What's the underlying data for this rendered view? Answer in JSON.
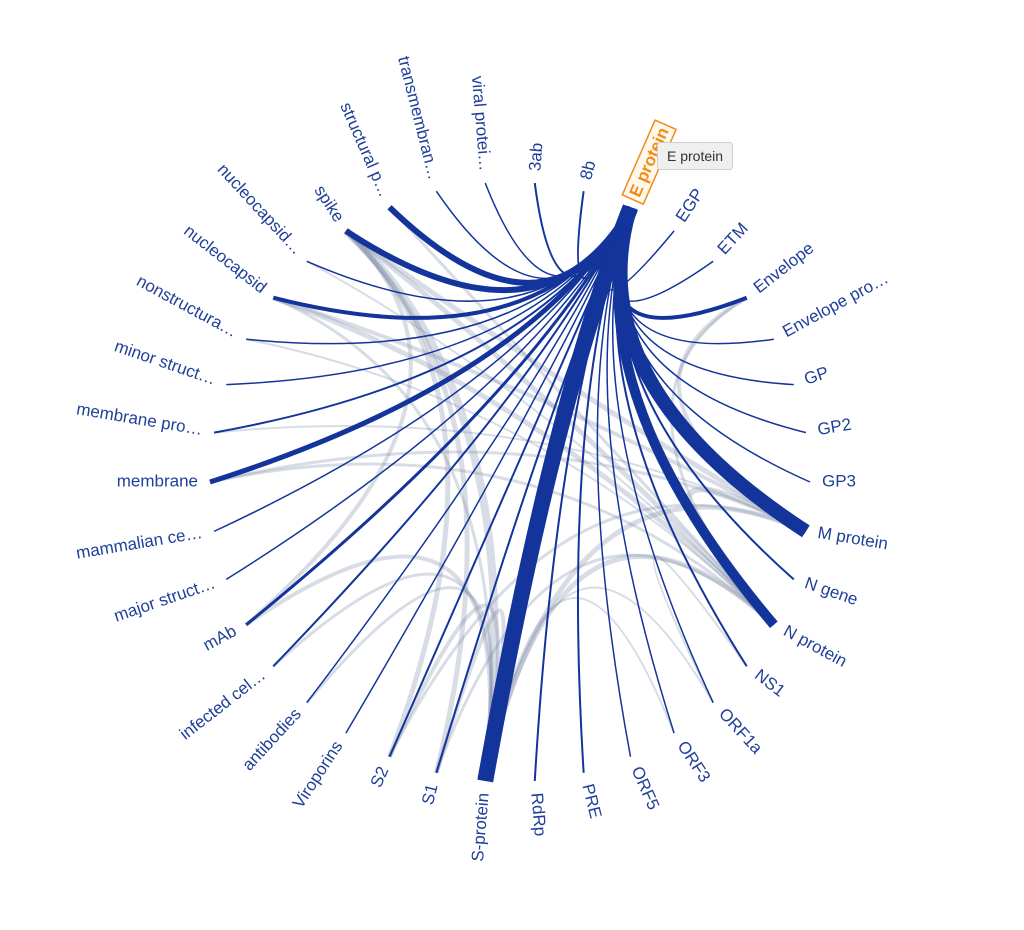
{
  "nodes": [
    {
      "label": "3ab"
    },
    {
      "label": "8b"
    },
    {
      "label": "E protein"
    },
    {
      "label": "EGP"
    },
    {
      "label": "ETM"
    },
    {
      "label": "Envelope"
    },
    {
      "label": "Envelope pro…"
    },
    {
      "label": "GP"
    },
    {
      "label": "GP2"
    },
    {
      "label": "GP3"
    },
    {
      "label": "M protein"
    },
    {
      "label": "N gene"
    },
    {
      "label": "N protein"
    },
    {
      "label": "NS1"
    },
    {
      "label": "ORF1a"
    },
    {
      "label": "ORF3"
    },
    {
      "label": "ORF5"
    },
    {
      "label": "PRE"
    },
    {
      "label": "RdRp"
    },
    {
      "label": "S-protein"
    },
    {
      "label": "S1"
    },
    {
      "label": "S2"
    },
    {
      "label": "Viroporins"
    },
    {
      "label": "antibodies"
    },
    {
      "label": "infected cel…"
    },
    {
      "label": "mAb"
    },
    {
      "label": "major struct…"
    },
    {
      "label": "mammalian ce…"
    },
    {
      "label": "membrane"
    },
    {
      "label": "membrane pro…"
    },
    {
      "label": "minor struct…"
    },
    {
      "label": "nonstructura…"
    },
    {
      "label": "nucleocapsid"
    },
    {
      "label": "nucleocapsid…"
    },
    {
      "label": "spike"
    },
    {
      "label": "structural p…"
    },
    {
      "label": "transmembran…"
    },
    {
      "label": "viral protei…"
    }
  ],
  "selected": 2,
  "tooltip": "E protein",
  "links": [
    {
      "source": 2,
      "target": 0,
      "weight": 2
    },
    {
      "source": 2,
      "target": 1,
      "weight": 2
    },
    {
      "source": 2,
      "target": 3,
      "weight": 1.5
    },
    {
      "source": 2,
      "target": 4,
      "weight": 1.5
    },
    {
      "source": 2,
      "target": 5,
      "weight": 4
    },
    {
      "source": 2,
      "target": 6,
      "weight": 1.5
    },
    {
      "source": 2,
      "target": 7,
      "weight": 1.5
    },
    {
      "source": 2,
      "target": 8,
      "weight": 1.5
    },
    {
      "source": 2,
      "target": 9,
      "weight": 1.5
    },
    {
      "source": 2,
      "target": 10,
      "weight": 14
    },
    {
      "source": 2,
      "target": 11,
      "weight": 2
    },
    {
      "source": 2,
      "target": 12,
      "weight": 10
    },
    {
      "source": 2,
      "target": 13,
      "weight": 2
    },
    {
      "source": 2,
      "target": 14,
      "weight": 1.5
    },
    {
      "source": 2,
      "target": 15,
      "weight": 1.5
    },
    {
      "source": 2,
      "target": 16,
      "weight": 1.5
    },
    {
      "source": 2,
      "target": 17,
      "weight": 2
    },
    {
      "source": 2,
      "target": 18,
      "weight": 2
    },
    {
      "source": 2,
      "target": 19,
      "weight": 16
    },
    {
      "source": 2,
      "target": 20,
      "weight": 2
    },
    {
      "source": 2,
      "target": 21,
      "weight": 2
    },
    {
      "source": 2,
      "target": 22,
      "weight": 1.5
    },
    {
      "source": 2,
      "target": 23,
      "weight": 1.5
    },
    {
      "source": 2,
      "target": 24,
      "weight": 2
    },
    {
      "source": 2,
      "target": 25,
      "weight": 3
    },
    {
      "source": 2,
      "target": 26,
      "weight": 1.5
    },
    {
      "source": 2,
      "target": 27,
      "weight": 1.5
    },
    {
      "source": 2,
      "target": 28,
      "weight": 5
    },
    {
      "source": 2,
      "target": 29,
      "weight": 2
    },
    {
      "source": 2,
      "target": 30,
      "weight": 1.5
    },
    {
      "source": 2,
      "target": 31,
      "weight": 1.5
    },
    {
      "source": 2,
      "target": 32,
      "weight": 4
    },
    {
      "source": 2,
      "target": 33,
      "weight": 1.5
    },
    {
      "source": 2,
      "target": 34,
      "weight": 6
    },
    {
      "source": 2,
      "target": 35,
      "weight": 6
    },
    {
      "source": 2,
      "target": 36,
      "weight": 1.5
    },
    {
      "source": 2,
      "target": 37,
      "weight": 1.5
    },
    {
      "source": 34,
      "target": 19,
      "weight": 8
    },
    {
      "source": 34,
      "target": 12,
      "weight": 5
    },
    {
      "source": 34,
      "target": 10,
      "weight": 5
    },
    {
      "source": 34,
      "target": 21,
      "weight": 5
    },
    {
      "source": 34,
      "target": 20,
      "weight": 5
    },
    {
      "source": 34,
      "target": 25,
      "weight": 4
    },
    {
      "source": 32,
      "target": 12,
      "weight": 5
    },
    {
      "source": 32,
      "target": 10,
      "weight": 4
    },
    {
      "source": 32,
      "target": 19,
      "weight": 3
    },
    {
      "source": 10,
      "target": 12,
      "weight": 6
    },
    {
      "source": 10,
      "target": 19,
      "weight": 5
    },
    {
      "source": 12,
      "target": 19,
      "weight": 5
    },
    {
      "source": 19,
      "target": 21,
      "weight": 4
    },
    {
      "source": 19,
      "target": 20,
      "weight": 4
    },
    {
      "source": 20,
      "target": 12,
      "weight": 3
    },
    {
      "source": 21,
      "target": 10,
      "weight": 3
    },
    {
      "source": 5,
      "target": 10,
      "weight": 4
    },
    {
      "source": 5,
      "target": 12,
      "weight": 3
    },
    {
      "source": 28,
      "target": 10,
      "weight": 3
    },
    {
      "source": 28,
      "target": 12,
      "weight": 3
    },
    {
      "source": 25,
      "target": 19,
      "weight": 4
    },
    {
      "source": 24,
      "target": 19,
      "weight": 3
    },
    {
      "source": 23,
      "target": 19,
      "weight": 3
    },
    {
      "source": 35,
      "target": 12,
      "weight": 3
    },
    {
      "source": 14,
      "target": 19,
      "weight": 2
    },
    {
      "source": 15,
      "target": 19,
      "weight": 2
    },
    {
      "source": 13,
      "target": 14,
      "weight": 2
    },
    {
      "source": 29,
      "target": 10,
      "weight": 2
    },
    {
      "source": 31,
      "target": 12,
      "weight": 2
    },
    {
      "source": 33,
      "target": 12,
      "weight": 2
    }
  ]
}
